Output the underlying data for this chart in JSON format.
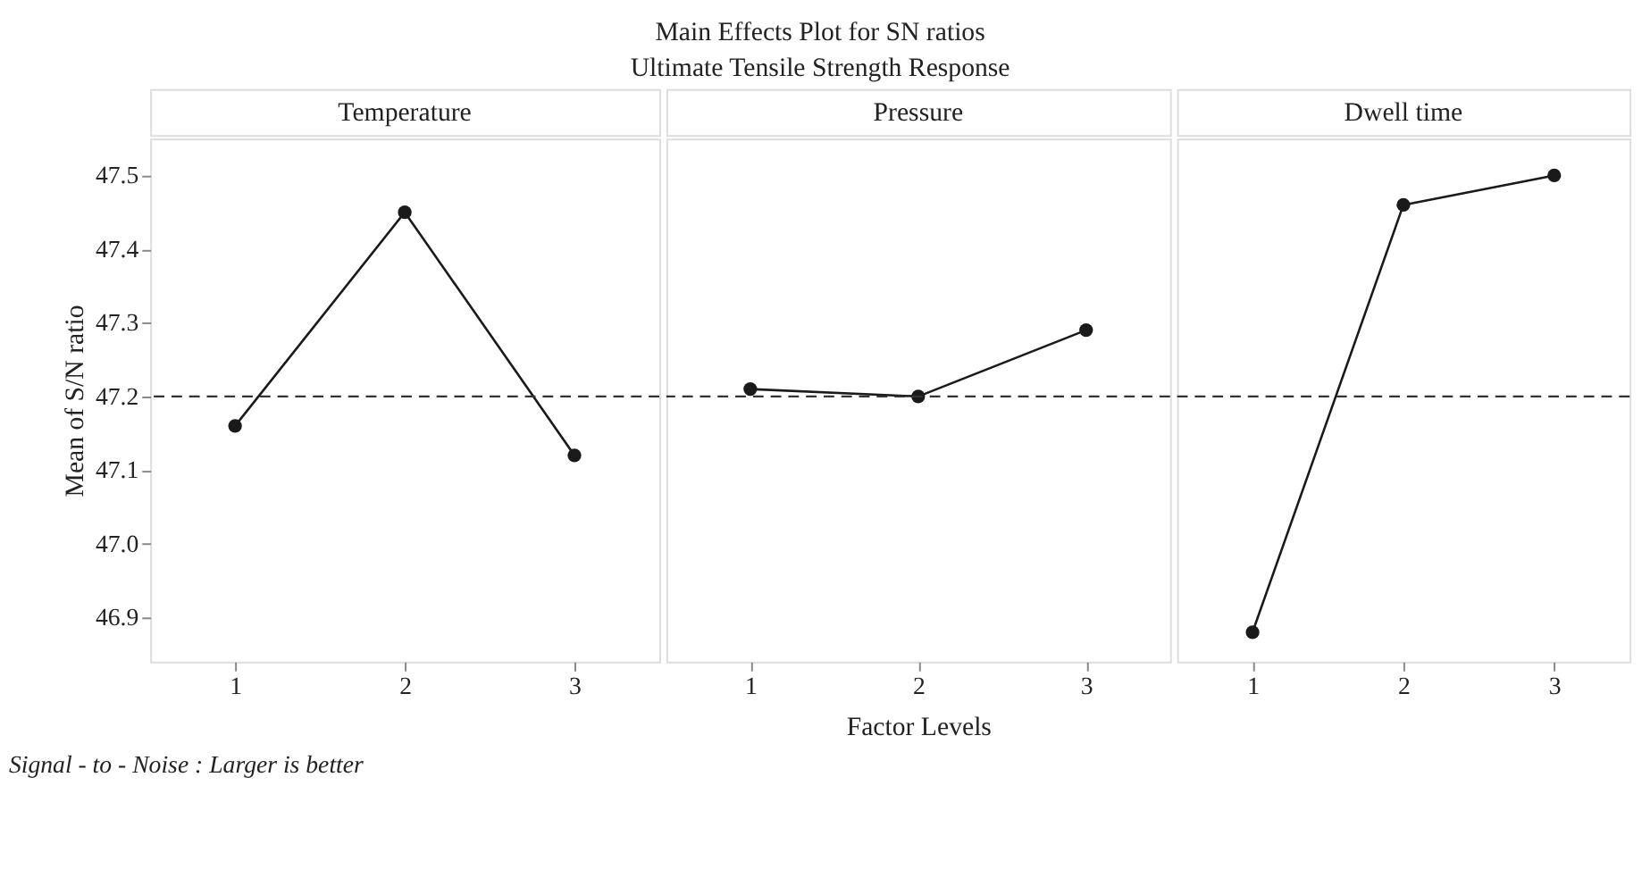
{
  "chart_data": [
    {
      "type": "line",
      "title": "Temperature",
      "ylabel": "Mean of S/N ratio",
      "categories": [
        "1",
        "2",
        "3"
      ],
      "values": [
        47.16,
        47.45,
        47.12
      ],
      "color": "#1a1a1a",
      "marker": "circle",
      "line_style": "solid",
      "ylim": [
        46.84,
        47.55
      ],
      "yticks": [
        46.9,
        {
          "value": 47,
          "label": "47.0"
        },
        47.1,
        47.2,
        47.3,
        47.4,
        47.5
      ],
      "grid": false,
      "ref_lines": [
        {
          "axis": "y",
          "value": 47.2,
          "line_style": "dashed"
        }
      ],
      "annotations": [
        "Main Effects Plot for SN ratios",
        "Ultimate Tensile Strength Response",
        "Signal - to - Noise : Larger is better"
      ]
    },
    {
      "type": "line",
      "title": "Pressure",
      "xlabel": "Factor Levels",
      "categories": [
        "1",
        "2",
        "3"
      ],
      "values": [
        47.21,
        47.2,
        47.29
      ],
      "color": "#1a1a1a",
      "marker": "circle",
      "line_style": "solid",
      "ylim": [
        46.84,
        47.55
      ],
      "tick_labels": "x",
      "grid": false,
      "ref_lines": [
        {
          "axis": "y",
          "value": 47.2,
          "line_style": "dashed"
        }
      ]
    },
    {
      "type": "line",
      "title": "Dwell time",
      "categories": [
        "1",
        "2",
        "3"
      ],
      "values": [
        46.88,
        47.46,
        47.5
      ],
      "color": "#1a1a1a",
      "marker": "circle",
      "line_style": "solid",
      "ylim": [
        46.84,
        47.55
      ],
      "tick_labels": "x",
      "grid": false,
      "ref_lines": [
        {
          "axis": "y",
          "value": 47.2,
          "line_style": "dashed"
        }
      ]
    }
  ]
}
